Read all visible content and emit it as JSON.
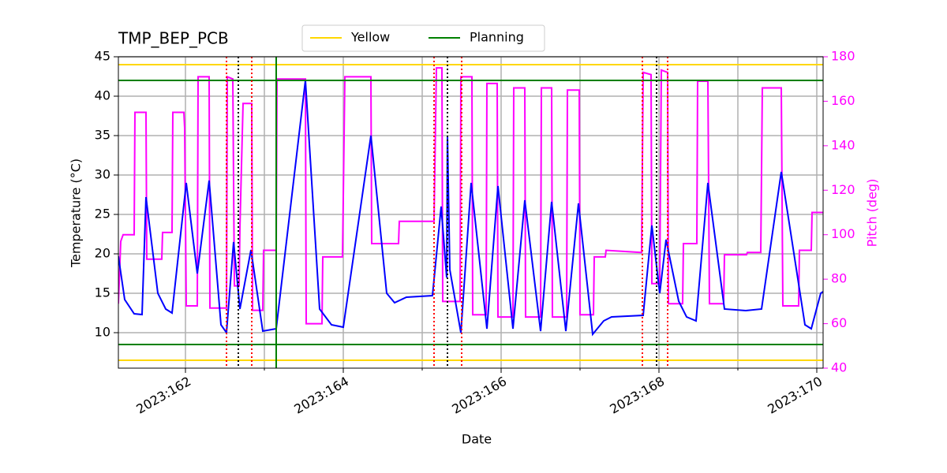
{
  "chart_data": {
    "type": "line",
    "title": "TMP_BEP_PCB",
    "xlabel": "Date",
    "ylabel": "Temperature (°C)",
    "y2label": "Pitch (deg)",
    "xlim": [
      161.15,
      170.08
    ],
    "xticks": [
      {
        "value": 162,
        "label": "2023:162"
      },
      {
        "value": 164,
        "label": "2023:164"
      },
      {
        "value": 166,
        "label": "2023:166"
      },
      {
        "value": 168,
        "label": "2023:168"
      },
      {
        "value": 170,
        "label": "2023:170"
      }
    ],
    "x_minor_ticks": [
      163,
      165,
      167,
      169
    ],
    "ylim": [
      5.5,
      45
    ],
    "yticks": [
      10,
      15,
      20,
      25,
      30,
      35,
      40,
      45
    ],
    "y2lim": [
      40,
      180
    ],
    "y2ticks": [
      40,
      60,
      80,
      100,
      120,
      140,
      160,
      180
    ],
    "grid": true,
    "legend": "top",
    "series": [
      {
        "color": "#0000ff",
        "x": [
          161.15,
          161.23,
          161.35,
          161.45,
          161.5,
          161.65,
          161.75,
          161.83,
          162.01,
          162.15,
          162.3,
          162.45,
          162.52,
          162.61,
          162.69,
          162.83,
          162.98,
          163.15,
          163.52,
          163.7,
          163.85,
          164.0,
          164.35,
          164.55,
          164.65,
          164.8,
          165.13,
          165.24,
          165.31,
          165.32,
          165.35,
          165.49,
          165.62,
          165.82,
          165.96,
          166.15,
          166.3,
          166.5,
          166.64,
          166.82,
          166.98,
          167.16,
          167.3,
          167.4,
          167.8,
          167.91,
          168.01,
          168.09,
          168.25,
          168.35,
          168.47,
          168.62,
          168.83,
          169.1,
          169.3,
          169.55,
          169.85,
          169.93,
          170.05,
          170.08
        ],
        "values": [
          19.7,
          14.2,
          12.4,
          12.3,
          27.2,
          15,
          13,
          12.5,
          29,
          17.5,
          29.3,
          11,
          10,
          21.5,
          13,
          20.5,
          10.2,
          10.5,
          42,
          13,
          11,
          10.7,
          35,
          15,
          13.8,
          14.5,
          14.7,
          26,
          17,
          35,
          18,
          10,
          29,
          10.5,
          28.6,
          10.5,
          26.8,
          10.2,
          26.6,
          10.2,
          26.4,
          9.8,
          11.5,
          12,
          12.2,
          23.6,
          15,
          21.8,
          14,
          12,
          11.5,
          29,
          13,
          12.8,
          13,
          30.4,
          11,
          10.5,
          15,
          15.2
        ]
      },
      {
        "color": "#ff00ff",
        "axis": "y2",
        "x": [
          161.15,
          161.18,
          161.21,
          161.35,
          161.36,
          161.5,
          161.51,
          161.7,
          161.71,
          161.83,
          161.84,
          161.98,
          161.99,
          162.01,
          162.15,
          162.16,
          162.3,
          162.31,
          162.52,
          162.53,
          162.6,
          162.62,
          162.68,
          162.69,
          162.73,
          162.84,
          162.85,
          162.98,
          162.99,
          163.15,
          163.16,
          163.52,
          163.53,
          163.73,
          163.74,
          163.99,
          164.02,
          164.35,
          164.36,
          164.7,
          164.71,
          165.15,
          165.18,
          165.25,
          165.26,
          165.48,
          165.49,
          165.63,
          165.64,
          165.81,
          165.82,
          165.95,
          165.96,
          166.15,
          166.16,
          166.3,
          166.31,
          166.5,
          166.51,
          166.64,
          166.65,
          166.83,
          166.84,
          166.99,
          167.0,
          167.17,
          167.18,
          167.32,
          167.33,
          167.78,
          167.8,
          167.9,
          167.91,
          168.01,
          168.03,
          168.11,
          168.12,
          168.3,
          168.31,
          168.48,
          168.49,
          168.62,
          168.64,
          168.82,
          168.83,
          169.11,
          169.12,
          169.29,
          169.31,
          169.55,
          169.57,
          169.77,
          169.78,
          169.93,
          169.94,
          170.08
        ],
        "values": [
          69,
          97,
          100,
          100,
          155,
          155,
          89,
          89,
          101,
          101,
          155,
          155,
          148,
          68,
          68,
          171,
          171,
          67,
          67,
          171,
          170,
          77,
          77,
          103,
          159,
          159,
          66,
          66,
          93,
          93,
          170,
          170,
          60,
          60,
          90,
          90,
          171,
          171,
          96,
          96,
          106,
          106,
          175,
          175,
          70,
          70,
          171,
          171,
          64,
          64,
          168,
          168,
          63,
          63,
          166,
          166,
          63,
          63,
          166,
          166,
          63,
          63,
          165,
          165,
          64,
          64,
          90,
          90,
          93,
          92,
          173,
          172,
          78,
          78,
          174,
          173,
          69,
          69,
          96,
          96,
          169,
          169,
          69,
          69,
          91,
          91,
          92,
          92,
          166,
          166,
          68,
          68,
          93,
          93,
          110,
          110
        ]
      }
    ],
    "hlines": [
      {
        "name": "Yellow",
        "color": "#ffd700",
        "values": [
          44,
          6.5
        ]
      },
      {
        "name": "Planning",
        "color": "#008000",
        "values": [
          42,
          8.5
        ]
      }
    ],
    "vlines": [
      {
        "color": "#ff0000",
        "style": "dotted",
        "x": [
          162.52,
          162.84,
          165.15,
          165.5,
          167.79,
          168.11
        ]
      },
      {
        "color": "#000000",
        "style": "dotted",
        "x": [
          162.67,
          165.32,
          167.97
        ]
      },
      {
        "color": "#008000",
        "style": "solid",
        "x": [
          163.15
        ]
      }
    ]
  }
}
